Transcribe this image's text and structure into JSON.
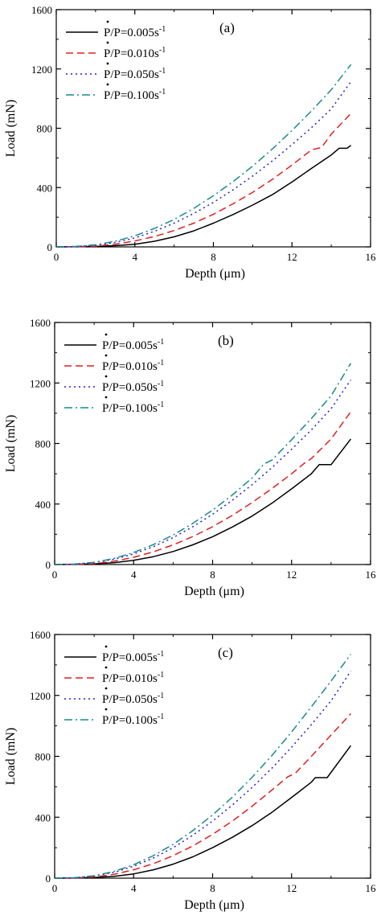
{
  "chart_data": [
    {
      "type": "line",
      "panel_label": "(a)",
      "xlabel": "Depth (μm)",
      "ylabel": "Load (mN)",
      "xlim": [
        0,
        16
      ],
      "ylim": [
        0,
        1600
      ],
      "xticks": [
        "0",
        "4",
        "8",
        "12",
        "16"
      ],
      "yticks": [
        "0",
        "400",
        "800",
        "1200",
        "1600"
      ],
      "grid": false,
      "legend": "top-left",
      "series": [
        {
          "name": "P/P=0.005s",
          "color": "#000000",
          "dash": "solid",
          "x": [
            0,
            1,
            2,
            3,
            4,
            5,
            6,
            7,
            8,
            9,
            10,
            11,
            12,
            13,
            14,
            14.4,
            14.8,
            15.0
          ],
          "y": [
            0,
            1,
            3,
            8,
            18,
            38,
            68,
            108,
            160,
            218,
            282,
            352,
            438,
            530,
            620,
            665,
            665,
            685
          ]
        },
        {
          "name": "P/P=0.010s",
          "color": "#e02020",
          "dash": "dashed",
          "x": [
            0,
            1,
            2,
            3,
            4,
            5,
            6,
            7,
            8,
            9,
            10,
            11,
            12,
            13,
            13.5,
            14,
            15.0
          ],
          "y": [
            0,
            1,
            5,
            18,
            40,
            70,
            110,
            160,
            220,
            290,
            368,
            455,
            552,
            655,
            670,
            760,
            900
          ]
        },
        {
          "name": "P/P=0.050s",
          "color": "#2020d0",
          "dash": "dotted",
          "x": [
            0,
            1,
            2,
            3,
            4,
            5,
            6,
            7,
            8,
            9,
            10,
            11,
            12,
            13,
            14,
            15.0
          ],
          "y": [
            0,
            2,
            10,
            30,
            60,
            105,
            160,
            225,
            300,
            385,
            478,
            580,
            690,
            805,
            930,
            1115
          ]
        },
        {
          "name": "P/P=0.100s",
          "color": "#1a8a8a",
          "dash": "dashdot",
          "x": [
            0,
            1,
            2,
            3,
            4,
            5,
            6,
            7,
            8,
            9,
            10,
            11,
            12,
            13,
            14,
            15.0
          ],
          "y": [
            0,
            3,
            14,
            38,
            75,
            125,
            185,
            260,
            345,
            440,
            545,
            660,
            785,
            918,
            1060,
            1230
          ]
        }
      ]
    },
    {
      "type": "line",
      "panel_label": "(b)",
      "xlabel": "Depth (μm)",
      "ylabel": "Load (mN)",
      "xlim": [
        0,
        16
      ],
      "ylim": [
        0,
        1600
      ],
      "xticks": [
        "0",
        "4",
        "8",
        "12",
        "16"
      ],
      "yticks": [
        "0",
        "400",
        "800",
        "1200",
        "1600"
      ],
      "grid": false,
      "legend": "top-left",
      "series": [
        {
          "name": "P/P=0.005s",
          "color": "#000000",
          "dash": "solid",
          "x": [
            0,
            1,
            2,
            3,
            4,
            5,
            6,
            7,
            8,
            9,
            10,
            11,
            12,
            13,
            13.4,
            14.0,
            15.0
          ],
          "y": [
            0,
            1,
            4,
            12,
            28,
            52,
            86,
            130,
            184,
            248,
            320,
            405,
            500,
            600,
            660,
            660,
            830
          ]
        },
        {
          "name": "P/P=0.010s",
          "color": "#e02020",
          "dash": "dashed",
          "x": [
            0,
            1,
            2,
            3,
            4,
            5,
            6,
            7,
            8,
            9,
            10,
            11,
            12,
            12.6,
            13,
            14,
            15.0
          ],
          "y": [
            0,
            1,
            6,
            22,
            48,
            84,
            130,
            185,
            250,
            325,
            410,
            502,
            600,
            665,
            700,
            830,
            1010
          ]
        },
        {
          "name": "P/P=0.050s",
          "color": "#2020d0",
          "dash": "dotted",
          "x": [
            0,
            1,
            2,
            3,
            4,
            5,
            6,
            7,
            8,
            9,
            10,
            11,
            12,
            13,
            14,
            15.0
          ],
          "y": [
            0,
            2,
            12,
            35,
            70,
            118,
            178,
            250,
            332,
            425,
            528,
            640,
            762,
            890,
            1030,
            1220
          ]
        },
        {
          "name": "P/P=0.100s",
          "color": "#1a8a8a",
          "dash": "dashdot",
          "x": [
            0,
            1,
            2,
            3,
            4,
            5,
            6,
            7,
            8,
            9,
            10,
            10.6,
            11,
            12,
            13,
            14,
            15.0
          ],
          "y": [
            0,
            3,
            15,
            40,
            80,
            132,
            195,
            272,
            360,
            460,
            572,
            665,
            690,
            825,
            965,
            1115,
            1330
          ]
        }
      ]
    },
    {
      "type": "line",
      "panel_label": "(c)",
      "xlabel": "Depth (μm)",
      "ylabel": "Load (mN)",
      "xlim": [
        0,
        16
      ],
      "ylim": [
        0,
        1600
      ],
      "xticks": [
        "0",
        "4",
        "8",
        "12",
        "16"
      ],
      "yticks": [
        "0",
        "400",
        "800",
        "1200",
        "1600"
      ],
      "grid": false,
      "legend": "top-left",
      "series": [
        {
          "name": "P/P=0.005s",
          "color": "#000000",
          "dash": "solid",
          "x": [
            0,
            1,
            2,
            3,
            4,
            5,
            6,
            7,
            8,
            9,
            10,
            11,
            12,
            13,
            13.2,
            13.8,
            15.0
          ],
          "y": [
            0,
            1,
            4,
            12,
            28,
            55,
            92,
            140,
            200,
            268,
            345,
            432,
            530,
            630,
            660,
            660,
            870
          ]
        },
        {
          "name": "P/P=0.010s",
          "color": "#e02020",
          "dash": "dashed",
          "x": [
            0,
            1,
            2,
            3,
            4,
            5,
            6,
            7,
            8,
            9,
            10,
            11,
            11.8,
            12.2,
            13,
            14,
            15.0
          ],
          "y": [
            0,
            1,
            8,
            25,
            55,
            95,
            148,
            212,
            288,
            375,
            472,
            578,
            665,
            690,
            800,
            940,
            1080
          ]
        },
        {
          "name": "P/P=0.050s",
          "color": "#2020d0",
          "dash": "dotted",
          "x": [
            0,
            1,
            2,
            3,
            4,
            5,
            6,
            7,
            8,
            9,
            10,
            11,
            12,
            13,
            14,
            15.0
          ],
          "y": [
            0,
            2,
            13,
            38,
            78,
            132,
            200,
            282,
            375,
            480,
            595,
            722,
            860,
            1008,
            1165,
            1360
          ]
        },
        {
          "name": "P/P=0.100s",
          "color": "#1a8a8a",
          "dash": "dashdot",
          "x": [
            0,
            1,
            2,
            3,
            4,
            5,
            6,
            7,
            8,
            9,
            10,
            11,
            12,
            13,
            14,
            15.0
          ],
          "y": [
            0,
            3,
            16,
            44,
            88,
            148,
            222,
            312,
            415,
            532,
            662,
            805,
            960,
            1125,
            1295,
            1470
          ]
        }
      ]
    }
  ]
}
